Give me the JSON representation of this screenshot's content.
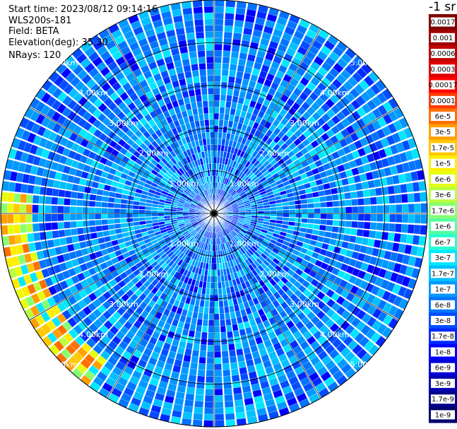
{
  "header": {
    "start_time": "Start time: 2023/08/12 09:14:16",
    "instrument": "WLS200s-181",
    "field": "Field: BETA",
    "elevation": "Elevation(deg): 35.30",
    "nrays": "NRays: 120"
  },
  "colorbar": {
    "unit_label": "-1 sr",
    "ticks": [
      "0.0017",
      "0.001",
      "0.0006",
      "0.0003",
      "0.00017",
      "0.0001",
      "6e-5",
      "3e-5",
      "1.7e-5",
      "1e-5",
      "6e-6",
      "3e-6",
      "1.7e-6",
      "1e-6",
      "6e-7",
      "3e-7",
      "1.7e-7",
      "1e-7",
      "6e-8",
      "3e-8",
      "1.7e-8",
      "1e-8",
      "6e-9",
      "3e-9",
      "1.7e-9",
      "1e-9"
    ],
    "colors": [
      "#800000",
      "#a00000",
      "#c00000",
      "#e00000",
      "#ff0000",
      "#ff3a00",
      "#ff7000",
      "#ff9f00",
      "#ffc800",
      "#ffee00",
      "#e6ff10",
      "#b8ff40",
      "#86ff70",
      "#55ffa2",
      "#28ffcf",
      "#00e7ff",
      "#00c0ff",
      "#0099ff",
      "#0074ff",
      "#004eff",
      "#0028ff",
      "#0000ff",
      "#0000d8",
      "#0000b2",
      "#00008b",
      "#000070"
    ]
  },
  "chart_data": {
    "type": "polar-ppi",
    "field": "BETA",
    "units": "sr^-1",
    "elevation_deg": 35.3,
    "n_rays": 120,
    "range_rings_km": [
      1.0,
      2.0,
      3.0,
      4.0,
      5.0
    ],
    "range_labels": [
      "1.00km",
      "2.00km",
      "3.00km",
      "4.00km",
      "5.00km"
    ],
    "max_range_km": 5.0,
    "spoke_step_deg": 30,
    "typical_value": "3e-8",
    "enhanced_arc": {
      "azimuth_deg": [
        215,
        275
      ],
      "range_km": [
        4.2,
        5.0
      ],
      "value": "6e-6"
    },
    "color_scale": "log"
  }
}
